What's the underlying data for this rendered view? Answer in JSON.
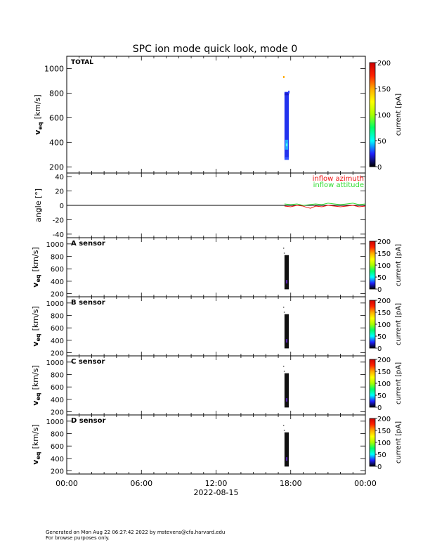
{
  "title": "SPC ion mode quick look, mode 0",
  "footer": {
    "line1": "Generated on Mon Aug 22 06:27:42 2022 by mstevens@cfa.harvard.edu",
    "line2": "For browse purposes only."
  },
  "x_axis": {
    "ticks": [
      "00:00",
      "06:00",
      "12:00",
      "18:00",
      "00:00"
    ],
    "tick_hours": [
      0,
      6,
      12,
      18,
      24
    ],
    "date_label": "2022-08-15"
  },
  "colors": {
    "azimuth": "#ee1111",
    "altitude": "#33dd33",
    "colorbar": [
      "#000000",
      "#2020ff",
      "#00ffff",
      "#00ff66",
      "#aaff00",
      "#ffff00",
      "#ffaa00",
      "#ff2200",
      "#cc0000"
    ]
  },
  "chart_data": [
    {
      "type": "heatmap",
      "label": "TOTAL",
      "ylabel_main": "v",
      "ylabel_sub": "eq",
      "ylabel_unit": "[km/s]",
      "ylim": [
        150,
        1100
      ],
      "yticks": [
        200,
        400,
        600,
        800,
        1000
      ],
      "colorbar": {
        "label": "current [pA]",
        "ticks": [
          0,
          50,
          100,
          150,
          200
        ],
        "range": [
          0,
          200
        ]
      },
      "data_hours": [
        17.5,
        17.85
      ],
      "velocity_band": [
        270,
        810
      ],
      "peak_velocity": 380
    },
    {
      "type": "line",
      "ylabel": "angle [°]",
      "ylim": [
        -45,
        45
      ],
      "yticks": [
        -40,
        -20,
        0,
        20,
        40
      ],
      "zero_line": true,
      "series": [
        {
          "name": "inflow azimuth",
          "color": "#ee1111",
          "x": [
            17.5,
            18.0,
            18.5,
            19.0,
            19.3,
            19.6,
            20.0,
            20.5,
            21.0,
            21.5,
            22.0,
            22.5,
            23.0,
            23.5,
            24.0
          ],
          "y": [
            -1,
            -2,
            0,
            -1,
            -3,
            -4,
            -1,
            -2,
            0,
            -1,
            -2,
            -1,
            0,
            -2,
            -1
          ]
        },
        {
          "name": "inflow attitude",
          "color": "#33dd33",
          "x": [
            17.5,
            18.0,
            18.5,
            19.0,
            19.5,
            20.0,
            20.5,
            21.0,
            21.5,
            22.0,
            22.5,
            23.0,
            23.5,
            24.0
          ],
          "y": [
            2,
            1,
            2,
            0,
            1,
            2,
            1,
            3,
            2,
            1,
            2,
            3,
            1,
            2
          ]
        }
      ]
    },
    {
      "type": "heatmap",
      "label": "A sensor",
      "ylabel_main": "v",
      "ylabel_sub": "eq",
      "ylabel_unit": "[km/s]",
      "ylim": [
        150,
        1100
      ],
      "yticks": [
        200,
        400,
        600,
        800,
        1000
      ],
      "colorbar": {
        "label": "current [pA]",
        "ticks": [
          0,
          50,
          100,
          150,
          200
        ],
        "range": [
          0,
          200
        ]
      },
      "data_hours": [
        17.5,
        17.85
      ],
      "velocity_band": [
        270,
        820
      ]
    },
    {
      "type": "heatmap",
      "label": "B sensor",
      "ylabel_main": "v",
      "ylabel_sub": "eq",
      "ylabel_unit": "[km/s]",
      "ylim": [
        150,
        1100
      ],
      "yticks": [
        200,
        400,
        600,
        800,
        1000
      ],
      "colorbar": {
        "label": "current [pA]",
        "ticks": [
          0,
          50,
          100,
          150,
          200
        ],
        "range": [
          0,
          200
        ]
      },
      "data_hours": [
        17.5,
        17.85
      ],
      "velocity_band": [
        270,
        820
      ]
    },
    {
      "type": "heatmap",
      "label": "C sensor",
      "ylabel_main": "v",
      "ylabel_sub": "eq",
      "ylabel_unit": "[km/s]",
      "ylim": [
        150,
        1100
      ],
      "yticks": [
        200,
        400,
        600,
        800,
        1000
      ],
      "colorbar": {
        "label": "current [pA]",
        "ticks": [
          0,
          50,
          100,
          150,
          200
        ],
        "range": [
          0,
          200
        ]
      },
      "data_hours": [
        17.5,
        17.85
      ],
      "velocity_band": [
        270,
        820
      ]
    },
    {
      "type": "heatmap",
      "label": "D sensor",
      "ylabel_main": "v",
      "ylabel_sub": "eq",
      "ylabel_unit": "[km/s]",
      "ylim": [
        150,
        1100
      ],
      "yticks": [
        200,
        400,
        600,
        800,
        1000
      ],
      "colorbar": {
        "label": "current [pA]",
        "ticks": [
          0,
          50,
          100,
          150,
          200
        ],
        "range": [
          0,
          200
        ]
      },
      "data_hours": [
        17.5,
        17.85
      ],
      "velocity_band": [
        270,
        820
      ]
    }
  ]
}
